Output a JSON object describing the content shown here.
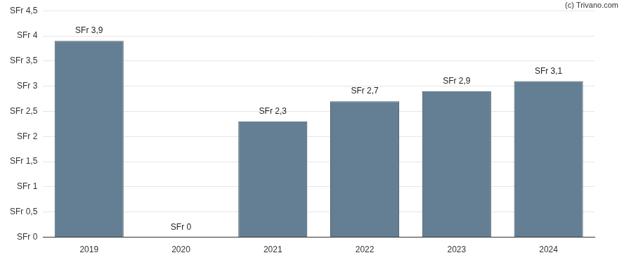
{
  "chart_data": {
    "type": "bar",
    "annotation": "(c) Trivano.com",
    "categories": [
      "2019",
      "2020",
      "2021",
      "2022",
      "2023",
      "2024"
    ],
    "values": [
      3.9,
      0,
      2.3,
      2.7,
      2.9,
      3.1
    ],
    "value_labels": [
      "SFr 3,9",
      "SFr 0",
      "SFr 2,3",
      "SFr 2,7",
      "SFr 2,9",
      "SFr 3,1"
    ],
    "data_labels": true,
    "color": "#647f93",
    "ylim": [
      0,
      4.5
    ],
    "yticks": [
      {
        "value": 0,
        "label": "SFr 0"
      },
      {
        "value": 0.5,
        "label": "SFr 0,5"
      },
      {
        "value": 1,
        "label": "SFr 1"
      },
      {
        "value": 1.5,
        "label": "SFr 1,5"
      },
      {
        "value": 2,
        "label": "SFr 2"
      },
      {
        "value": 2.5,
        "label": "SFr 2,5"
      },
      {
        "value": 3,
        "label": "SFr 3"
      },
      {
        "value": 3.5,
        "label": "SFr 3,5"
      },
      {
        "value": 4,
        "label": "SFr 4"
      },
      {
        "value": 4.5,
        "label": "SFr 4,5"
      }
    ],
    "grid": true
  }
}
